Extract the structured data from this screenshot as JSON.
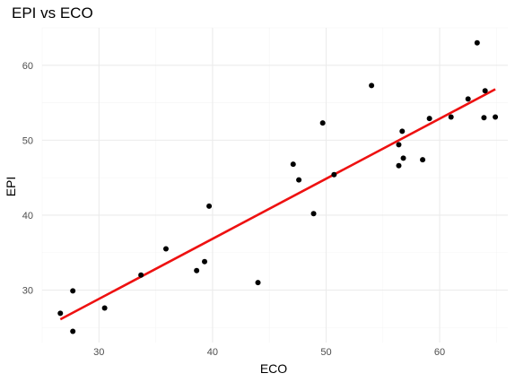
{
  "chart_data": {
    "type": "scatter",
    "title": "EPI vs ECO",
    "xlabel": "ECO",
    "ylabel": "EPI",
    "xlim": [
      25,
      66
    ],
    "ylim": [
      23,
      65
    ],
    "xticks": [
      30,
      40,
      50,
      60
    ],
    "yticks": [
      30,
      40,
      50,
      60
    ],
    "grid": true,
    "legend": "none",
    "point_color": "#000000",
    "fit_line_color": "#ee1111",
    "points": [
      {
        "x": 26.6,
        "y": 26.9
      },
      {
        "x": 27.7,
        "y": 29.9
      },
      {
        "x": 27.7,
        "y": 24.5
      },
      {
        "x": 30.5,
        "y": 27.6
      },
      {
        "x": 33.7,
        "y": 32.0
      },
      {
        "x": 35.9,
        "y": 35.5
      },
      {
        "x": 38.6,
        "y": 32.6
      },
      {
        "x": 39.3,
        "y": 33.8
      },
      {
        "x": 39.7,
        "y": 41.2
      },
      {
        "x": 44.0,
        "y": 31.0
      },
      {
        "x": 47.1,
        "y": 46.8
      },
      {
        "x": 47.6,
        "y": 44.7
      },
      {
        "x": 48.9,
        "y": 40.2
      },
      {
        "x": 49.7,
        "y": 52.3
      },
      {
        "x": 50.7,
        "y": 45.4
      },
      {
        "x": 54.0,
        "y": 57.3
      },
      {
        "x": 56.4,
        "y": 49.4
      },
      {
        "x": 56.4,
        "y": 46.6
      },
      {
        "x": 56.7,
        "y": 51.2
      },
      {
        "x": 56.8,
        "y": 47.6
      },
      {
        "x": 58.5,
        "y": 47.4
      },
      {
        "x": 59.1,
        "y": 52.9
      },
      {
        "x": 61.0,
        "y": 53.1
      },
      {
        "x": 62.5,
        "y": 55.5
      },
      {
        "x": 63.3,
        "y": 63.0
      },
      {
        "x": 63.9,
        "y": 53.0
      },
      {
        "x": 64.0,
        "y": 56.6
      },
      {
        "x": 64.9,
        "y": 53.1
      }
    ],
    "fit_line": {
      "x": [
        26.6,
        64.9
      ],
      "y": [
        26.1,
        56.8
      ]
    }
  }
}
